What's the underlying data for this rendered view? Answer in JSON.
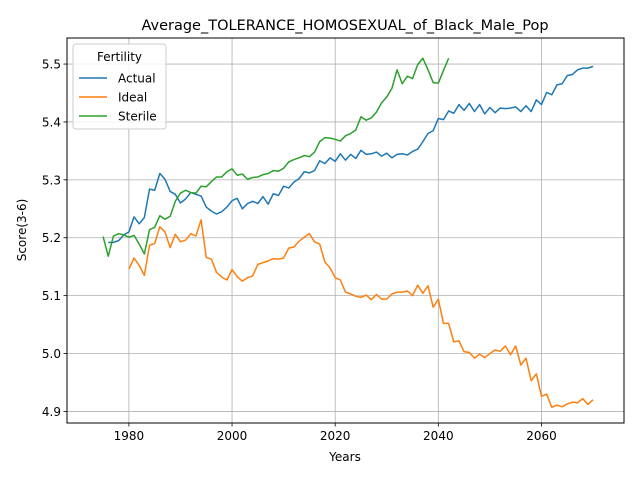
{
  "chart_data": {
    "type": "line",
    "title": "Average_TOLERANCE_HOMOSEXUAL_of_Black_Male_Pop",
    "xlabel": "Years",
    "ylabel": "Score(3-6)",
    "xlim": [
      1968,
      2076
    ],
    "ylim": [
      4.88,
      5.545
    ],
    "x_ticks": [
      1980,
      2000,
      2020,
      2040,
      2060
    ],
    "y_ticks": [
      4.9,
      5.0,
      5.1,
      5.2,
      5.3,
      5.4,
      5.5
    ],
    "grid": true,
    "legend": {
      "title": "Fertility",
      "position": "upper-left"
    },
    "series": [
      {
        "name": "Actual",
        "color": "#1f77b4",
        "x": [
          1976,
          1977,
          1978,
          1979,
          1980,
          1981,
          1982,
          1983,
          1984,
          1985,
          1986,
          1987,
          1988,
          1989,
          1990,
          1991,
          1992,
          1993,
          1994,
          1995,
          1996,
          1997,
          1998,
          1999,
          2000,
          2001,
          2002,
          2003,
          2004,
          2005,
          2006,
          2007,
          2008,
          2009,
          2010,
          2011,
          2012,
          2013,
          2014,
          2015,
          2016,
          2017,
          2018,
          2019,
          2020,
          2021,
          2022,
          2023,
          2024,
          2025,
          2026,
          2027,
          2028,
          2029,
          2030,
          2031,
          2032,
          2033,
          2034,
          2035,
          2036,
          2037,
          2038,
          2039,
          2040,
          2041,
          2042,
          2043,
          2044,
          2045,
          2046,
          2047,
          2048,
          2049,
          2050,
          2051,
          2052,
          2053,
          2054,
          2055,
          2056,
          2057,
          2058,
          2059,
          2060,
          2061,
          2062,
          2063,
          2064,
          2065,
          2066,
          2067,
          2068,
          2069,
          2070
        ],
        "y": [
          5.192,
          5.192,
          5.195,
          5.205,
          5.21,
          5.236,
          5.224,
          5.235,
          5.284,
          5.282,
          5.311,
          5.301,
          5.28,
          5.275,
          5.26,
          5.267,
          5.278,
          5.275,
          5.272,
          5.253,
          5.246,
          5.241,
          5.245,
          5.253,
          5.264,
          5.268,
          5.25,
          5.259,
          5.263,
          5.259,
          5.271,
          5.258,
          5.276,
          5.273,
          5.289,
          5.286,
          5.296,
          5.302,
          5.314,
          5.312,
          5.316,
          5.333,
          5.328,
          5.338,
          5.332,
          5.345,
          5.334,
          5.344,
          5.337,
          5.351,
          5.344,
          5.345,
          5.348,
          5.341,
          5.346,
          5.338,
          5.344,
          5.345,
          5.343,
          5.349,
          5.353,
          5.366,
          5.38,
          5.385,
          5.406,
          5.404,
          5.419,
          5.415,
          5.43,
          5.42,
          5.432,
          5.418,
          5.43,
          5.414,
          5.425,
          5.416,
          5.424,
          5.423,
          5.424,
          5.426,
          5.418,
          5.428,
          5.418,
          5.438,
          5.43,
          5.451,
          5.447,
          5.464,
          5.466,
          5.48,
          5.482,
          5.49,
          5.493,
          5.493,
          5.496
        ]
      },
      {
        "name": "Ideal",
        "color": "#ff7f0e",
        "x": [
          1980,
          1981,
          1982,
          1983,
          1984,
          1985,
          1986,
          1987,
          1988,
          1989,
          1990,
          1991,
          1992,
          1993,
          1994,
          1995,
          1996,
          1997,
          1998,
          1999,
          2000,
          2001,
          2002,
          2003,
          2004,
          2005,
          2006,
          2007,
          2008,
          2009,
          2010,
          2011,
          2012,
          2013,
          2014,
          2015,
          2016,
          2017,
          2018,
          2019,
          2020,
          2021,
          2022,
          2023,
          2024,
          2025,
          2026,
          2027,
          2028,
          2029,
          2030,
          2031,
          2032,
          2033,
          2034,
          2035,
          2036,
          2037,
          2038,
          2039,
          2040,
          2041,
          2042,
          2043,
          2044,
          2045,
          2046,
          2047,
          2048,
          2049,
          2050,
          2051,
          2052,
          2053,
          2054,
          2055,
          2056,
          2057,
          2058,
          2059,
          2060,
          2061,
          2062,
          2063,
          2064,
          2065,
          2066,
          2067,
          2068,
          2069,
          2070
        ],
        "y": [
          5.146,
          5.165,
          5.152,
          5.135,
          5.187,
          5.19,
          5.219,
          5.21,
          5.183,
          5.206,
          5.193,
          5.196,
          5.207,
          5.203,
          5.231,
          5.166,
          5.163,
          5.14,
          5.132,
          5.127,
          5.145,
          5.133,
          5.125,
          5.131,
          5.134,
          5.154,
          5.157,
          5.16,
          5.164,
          5.163,
          5.165,
          5.182,
          5.184,
          5.194,
          5.201,
          5.207,
          5.193,
          5.189,
          5.158,
          5.148,
          5.131,
          5.127,
          5.106,
          5.103,
          5.099,
          5.097,
          5.101,
          5.093,
          5.102,
          5.094,
          5.094,
          5.103,
          5.106,
          5.106,
          5.108,
          5.1,
          5.118,
          5.104,
          5.117,
          5.08,
          5.094,
          5.052,
          5.052,
          5.02,
          5.022,
          5.003,
          5.002,
          4.992,
          4.999,
          4.993,
          5.0,
          5.006,
          5.004,
          5.013,
          4.998,
          5.013,
          4.98,
          4.992,
          4.953,
          4.965,
          4.926,
          4.93,
          4.907,
          4.911,
          4.908,
          4.913,
          4.916,
          4.915,
          4.922,
          4.912,
          4.92
        ]
      },
      {
        "name": "Sterile",
        "color": "#2ca02c",
        "x": [
          1975,
          1976,
          1977,
          1978,
          1979,
          1980,
          1981,
          1982,
          1983,
          1984,
          1985,
          1986,
          1987,
          1988,
          1989,
          1990,
          1991,
          1992,
          1993,
          1994,
          1995,
          1996,
          1997,
          1998,
          1999,
          2000,
          2001,
          2002,
          2003,
          2004,
          2005,
          2006,
          2007,
          2008,
          2009,
          2010,
          2011,
          2012,
          2013,
          2014,
          2015,
          2016,
          2017,
          2018,
          2019,
          2020,
          2021,
          2022,
          2023,
          2024,
          2025,
          2026,
          2027,
          2028,
          2029,
          2030,
          2031,
          2032,
          2033,
          2034,
          2035,
          2036,
          2037,
          2038,
          2039,
          2040,
          2041,
          2042
        ],
        "y": [
          5.202,
          5.168,
          5.203,
          5.207,
          5.205,
          5.201,
          5.204,
          5.189,
          5.172,
          5.214,
          5.218,
          5.238,
          5.232,
          5.237,
          5.263,
          5.277,
          5.282,
          5.278,
          5.277,
          5.289,
          5.288,
          5.297,
          5.305,
          5.305,
          5.314,
          5.319,
          5.308,
          5.31,
          5.301,
          5.304,
          5.305,
          5.309,
          5.311,
          5.316,
          5.315,
          5.32,
          5.331,
          5.335,
          5.338,
          5.342,
          5.34,
          5.348,
          5.366,
          5.373,
          5.372,
          5.37,
          5.367,
          5.376,
          5.38,
          5.386,
          5.409,
          5.403,
          5.407,
          5.417,
          5.433,
          5.443,
          5.458,
          5.49,
          5.466,
          5.479,
          5.475,
          5.499,
          5.51,
          5.49,
          5.468,
          5.467,
          5.489,
          5.51
        ]
      }
    ]
  }
}
